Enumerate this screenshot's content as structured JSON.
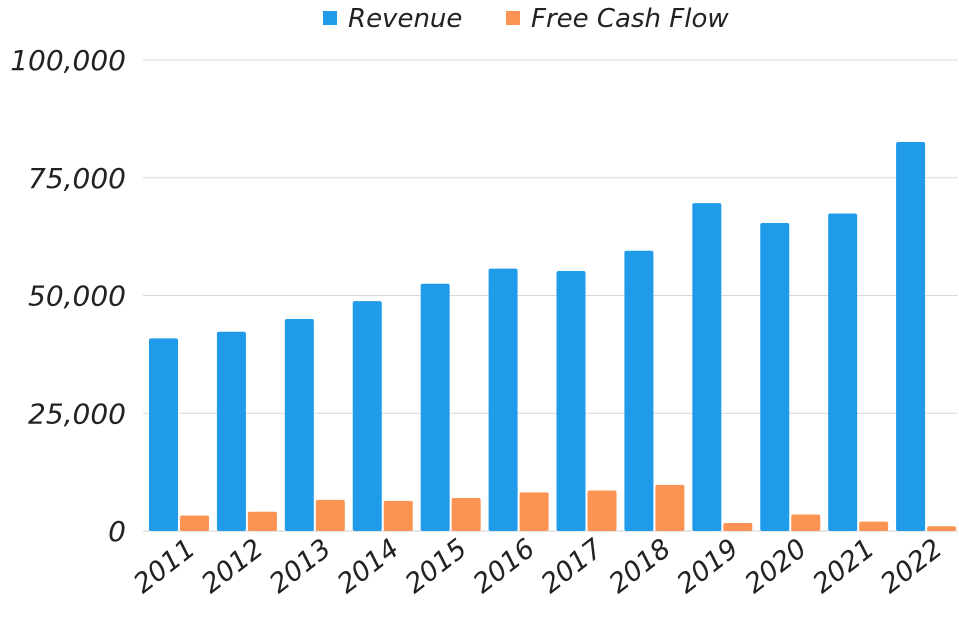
{
  "chart_data": {
    "type": "bar",
    "title": "",
    "xlabel": "",
    "ylabel": "",
    "categories": [
      "2011",
      "2012",
      "2013",
      "2014",
      "2015",
      "2016",
      "2017",
      "2018",
      "2019",
      "2020",
      "2021",
      "2022"
    ],
    "series": [
      {
        "name": "Revenue",
        "color": "#1f9bea",
        "values": [
          40900,
          42300,
          45000,
          48800,
          52500,
          55700,
          55200,
          59500,
          69600,
          65400,
          67400,
          82600
        ]
      },
      {
        "name": "Free Cash Flow",
        "color": "#fb9452",
        "values": [
          3300,
          4100,
          6600,
          6400,
          7000,
          8200,
          8600,
          9800,
          1700,
          3500,
          2000,
          1000
        ]
      }
    ],
    "ylim": [
      0,
      100000
    ],
    "yticks": [
      0,
      25000,
      50000,
      75000,
      100000
    ],
    "ytick_labels": [
      "0",
      "25,000",
      "50,000",
      "75,000",
      "100,000"
    ],
    "grid": true,
    "legend_position": "top-center"
  }
}
